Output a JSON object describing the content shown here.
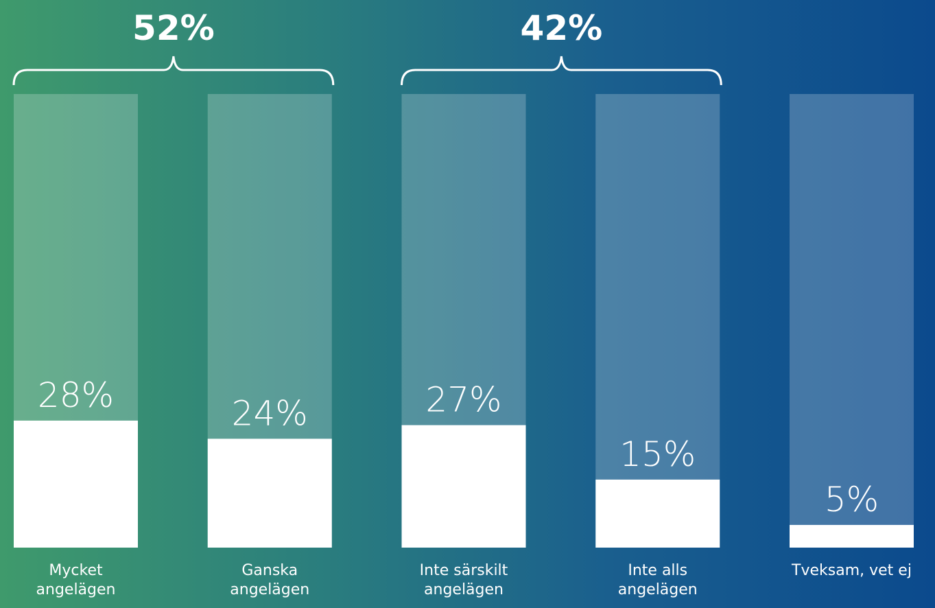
{
  "chart_data": {
    "type": "bar",
    "categories": [
      "Mycket\nangelägen",
      "Ganska\nangelägen",
      "Inte särskilt\nangelägen",
      "Inte alls\nangelägen",
      "Tveksam, vet ej"
    ],
    "values": [
      28,
      24,
      27,
      15,
      5
    ],
    "value_labels": [
      "28%",
      "24%",
      "27%",
      "15%",
      "5%"
    ],
    "color": "#ffffff",
    "ylim": [
      0,
      100
    ],
    "groups": [
      {
        "value": 52,
        "label": "52%"
      },
      {
        "value": 42,
        "label": "42%"
      }
    ]
  }
}
